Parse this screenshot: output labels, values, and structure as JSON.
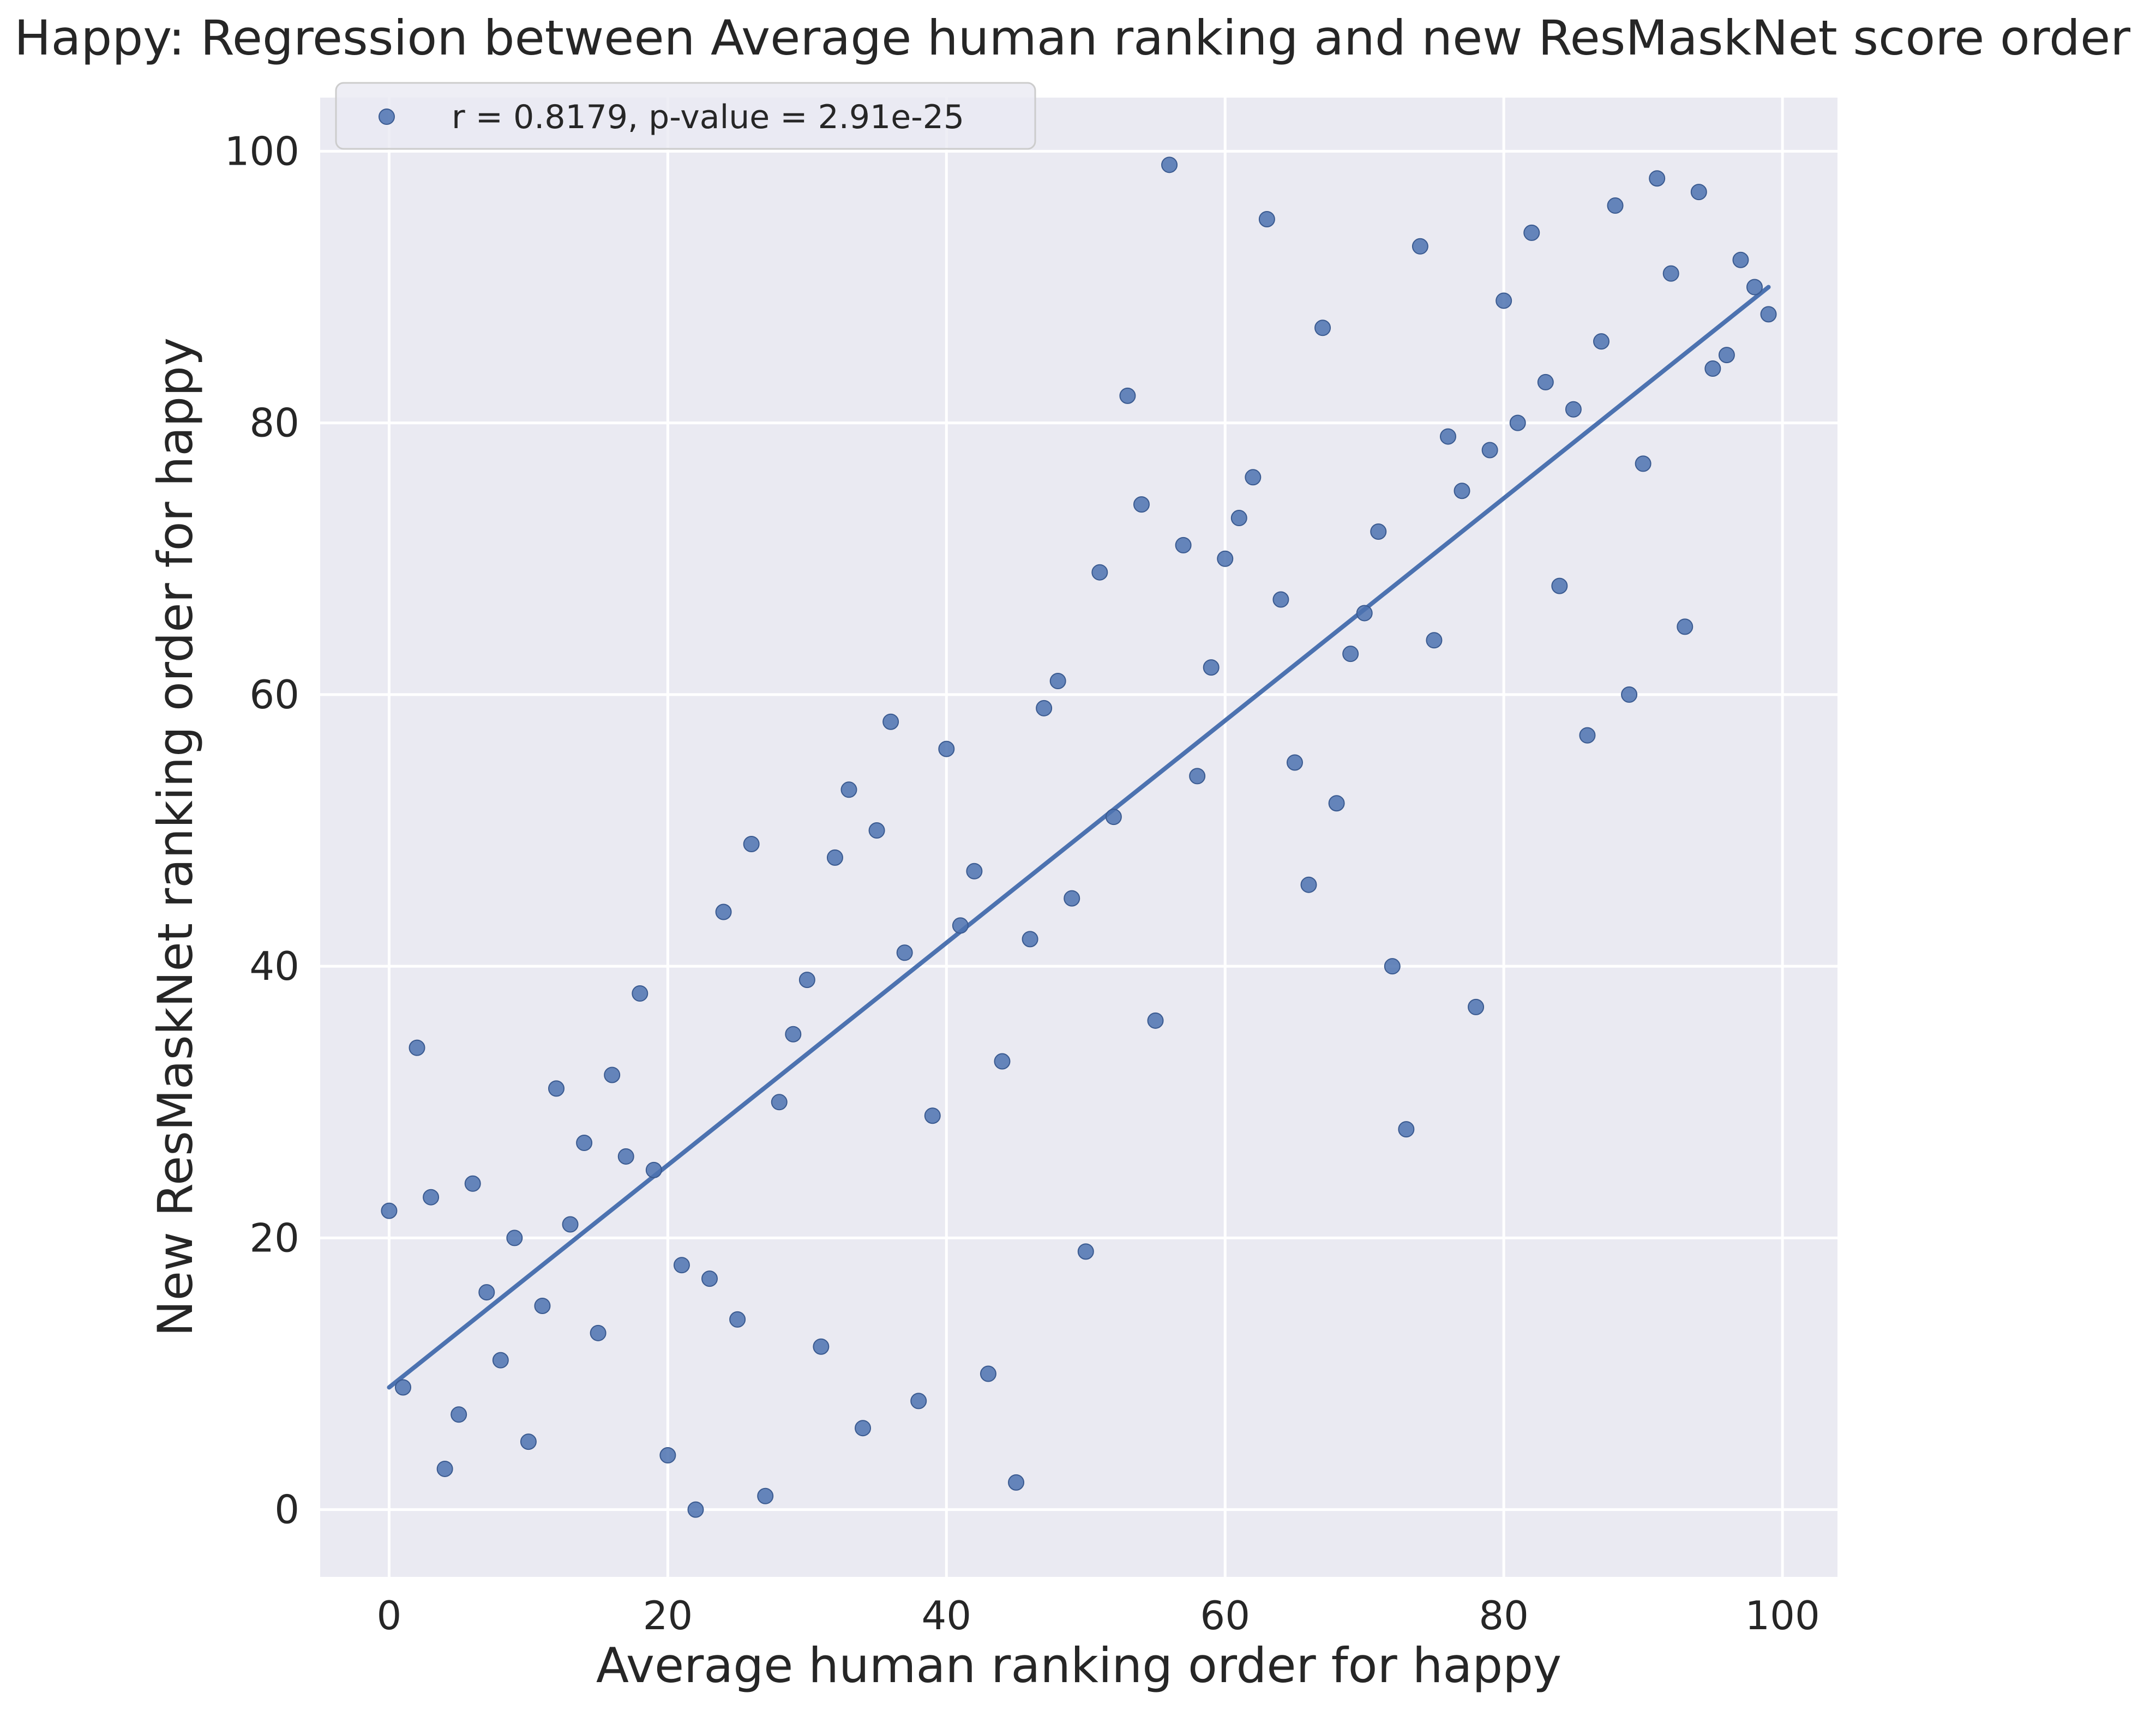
{
  "chart_data": {
    "type": "scatter",
    "title": "Happy: Regression between Average human ranking and new ResMaskNet score order",
    "xlabel": "Average human ranking order for happy",
    "ylabel": "New ResMaskNet ranking order for happy",
    "xlim": [
      -4.95,
      103.95
    ],
    "ylim": [
      -4.95,
      103.95
    ],
    "xticks": [
      0,
      20,
      40,
      60,
      80,
      100
    ],
    "yticks": [
      0,
      20,
      40,
      60,
      80,
      100
    ],
    "grid": true,
    "legend_position": "top-left",
    "legend_label": "r = 0.8179, p-value = 2.91e-25",
    "series_color": "#4c72b0",
    "x": [
      0,
      1,
      2,
      3,
      4,
      5,
      6,
      7,
      8,
      9,
      10,
      11,
      12,
      13,
      14,
      15,
      16,
      17,
      18,
      19,
      20,
      21,
      22,
      23,
      24,
      25,
      26,
      27,
      28,
      29,
      30,
      31,
      32,
      33,
      34,
      35,
      36,
      37,
      38,
      39,
      40,
      41,
      42,
      43,
      44,
      45,
      46,
      47,
      48,
      49,
      50,
      51,
      52,
      53,
      54,
      55,
      56,
      57,
      58,
      59,
      60,
      61,
      62,
      63,
      64,
      65,
      66,
      67,
      68,
      69,
      70,
      71,
      72,
      73,
      74,
      75,
      76,
      77,
      78,
      79,
      80,
      81,
      82,
      83,
      84,
      85,
      86,
      87,
      88,
      89,
      90,
      91,
      92,
      93,
      94,
      95,
      96,
      97,
      98,
      99
    ],
    "y": [
      22,
      9,
      34,
      23,
      3,
      7,
      24,
      16,
      11,
      20,
      5,
      15,
      31,
      21,
      27,
      13,
      32,
      26,
      38,
      25,
      4,
      18,
      0,
      17,
      44,
      14,
      49,
      1,
      30,
      35,
      39,
      12,
      48,
      53,
      6,
      50,
      58,
      41,
      8,
      29,
      56,
      43,
      47,
      10,
      33,
      2,
      42,
      59,
      61,
      45,
      19,
      69,
      51,
      82,
      74,
      36,
      99,
      71,
      54,
      62,
      70,
      73,
      76,
      95,
      67,
      55,
      46,
      87,
      52,
      63,
      66,
      72,
      40,
      28,
      93,
      64,
      79,
      75,
      37,
      78,
      89,
      80,
      94,
      83,
      68,
      81,
      57,
      86,
      96,
      60,
      77,
      98,
      91,
      65,
      97,
      84,
      85,
      92,
      90,
      88
    ],
    "regression_line": {
      "x": [
        0,
        99
      ],
      "y": [
        9,
        90
      ]
    }
  }
}
